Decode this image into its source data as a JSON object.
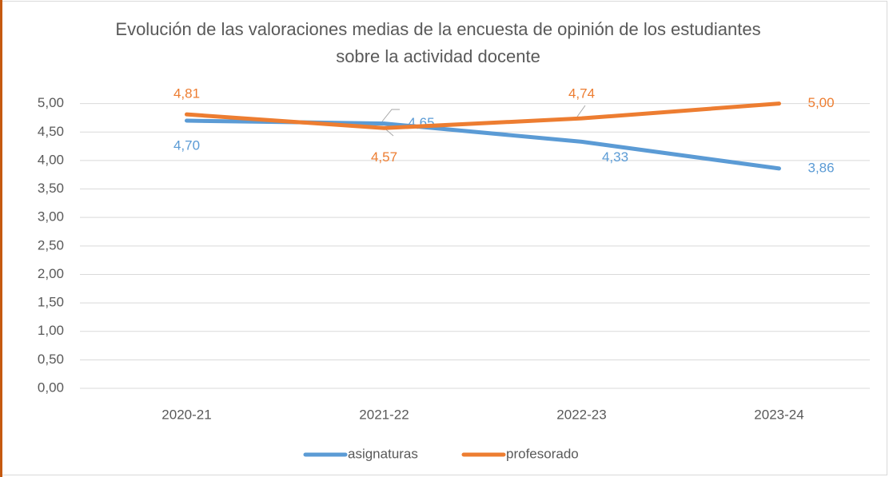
{
  "chart_data": {
    "type": "line",
    "title": "Evolución de las valoraciones medias de la encuesta de opinión de los estudiantes sobre la actividad docente",
    "categories": [
      "2020-21",
      "2021-22",
      "2022-23",
      "2023-24"
    ],
    "series": [
      {
        "name": "asignaturas",
        "color": "#5b9bd5",
        "values": [
          4.7,
          4.65,
          4.33,
          3.86
        ],
        "value_labels": [
          "4,70",
          "4,65",
          "4,33",
          "3,86"
        ]
      },
      {
        "name": "profesorado",
        "color": "#ed7d31",
        "values": [
          4.81,
          4.57,
          4.74,
          5.0
        ],
        "value_labels": [
          "4,81",
          "4,57",
          "4,74",
          "5,00"
        ]
      }
    ],
    "ylim": [
      0,
      5.5
    ],
    "yticks": [
      {
        "value": 0,
        "label": "0,00"
      },
      {
        "value": 0.5,
        "label": "0,50"
      },
      {
        "value": 1,
        "label": "1,00"
      },
      {
        "value": 1.5,
        "label": "1,50"
      },
      {
        "value": 2,
        "label": "2,00"
      },
      {
        "value": 2.5,
        "label": "2,50"
      },
      {
        "value": 3,
        "label": "3,00"
      },
      {
        "value": 3.5,
        "label": "3,50"
      },
      {
        "value": 4,
        "label": "4,00"
      },
      {
        "value": 4.5,
        "label": "4,50"
      },
      {
        "value": 5,
        "label": "5,00"
      }
    ],
    "grid": true,
    "legend": "bottom"
  }
}
